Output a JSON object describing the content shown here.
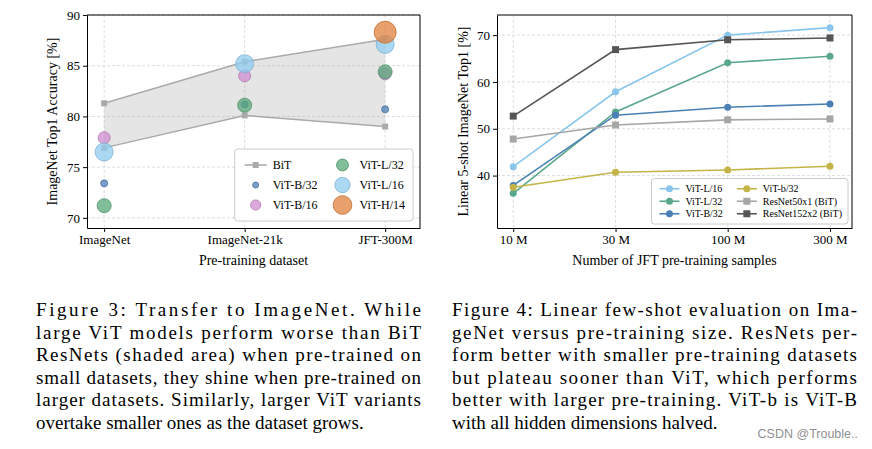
{
  "chart_data": [
    {
      "type": "scatter",
      "x_label": "Pre-training dataset",
      "y_label": "ImageNet Top1 Accuracy [%]",
      "categories": [
        "ImageNet",
        "ImageNet-21k",
        "JFT-300M"
      ],
      "ylim": [
        69,
        90
      ],
      "yticks": [
        70,
        75,
        80,
        85,
        90
      ],
      "grid": true,
      "legend": "lower right",
      "series": [
        {
          "name": "BiT",
          "type": "range_area",
          "color": "#aaaaaa",
          "marker": "square",
          "low": [
            76.9,
            80.1,
            79.0
          ],
          "high": [
            81.3,
            85.4,
            87.6
          ]
        },
        {
          "name": "ViT-B/32",
          "color": "#4a7fb5",
          "marker": "circle",
          "values": [
            73.4,
            81.2,
            80.7
          ]
        },
        {
          "name": "ViT-B/16",
          "color": "#cf8ccf",
          "marker": "circle",
          "values": [
            77.9,
            84.0,
            84.2
          ]
        },
        {
          "name": "ViT-L/32",
          "color": "#58a878",
          "marker": "circle",
          "values": [
            71.2,
            81.1,
            84.4
          ]
        },
        {
          "name": "ViT-L/16",
          "color": "#8fccf0",
          "marker": "circle",
          "values": [
            76.5,
            85.2,
            87.1
          ]
        },
        {
          "name": "ViT-H/14",
          "color": "#e0803c",
          "marker": "circle",
          "values": [
            null,
            null,
            88.3
          ]
        }
      ]
    },
    {
      "type": "line",
      "x_label": "Number of JFT pre-training samples",
      "y_label": "Linear 5-shot ImageNet Top1 [%]",
      "log": "x",
      "x": [
        10000000,
        30000000,
        100000000,
        300000000
      ],
      "xlim": [
        8400000,
        380000000
      ],
      "xticks": [
        {
          "value": 10000000,
          "label": "10 M"
        },
        {
          "value": 30000000,
          "label": "30 M"
        },
        {
          "value": 100000000,
          "label": "100 M"
        },
        {
          "value": 300000000,
          "label": "300 M"
        }
      ],
      "ylim": [
        28.8,
        74.3
      ],
      "yticks": [
        40,
        50,
        60,
        70
      ],
      "grid": true,
      "legend": "lower right",
      "series": [
        {
          "name": "ViT-L/16",
          "color": "#8ac6ec",
          "marker": "circle",
          "values": [
            41.9,
            57.9,
            70.0,
            71.6
          ]
        },
        {
          "name": "ViT-L/32",
          "color": "#5aa88a",
          "marker": "circle",
          "values": [
            36.2,
            53.6,
            64.1,
            65.5
          ]
        },
        {
          "name": "ViT-B/32",
          "color": "#4a80b4",
          "marker": "circle",
          "values": [
            37.9,
            52.9,
            54.6,
            55.3
          ]
        },
        {
          "name": "ViT-b/32",
          "color": "#c4b447",
          "marker": "circle",
          "values": [
            37.5,
            40.7,
            41.2,
            42.0
          ]
        },
        {
          "name": "ResNet50x1 (BiT)",
          "color": "#a6a6a6",
          "marker": "square",
          "values": [
            47.8,
            50.8,
            51.9,
            52.1
          ]
        },
        {
          "name": "ResNet152x2 (BiT)",
          "color": "#555555",
          "marker": "square",
          "values": [
            52.7,
            66.9,
            69.0,
            69.4
          ]
        }
      ]
    }
  ],
  "captions": [
    [
      "Figure 3: Transfer to ImageNet. While",
      "large ViT models perform worse than BiT",
      "ResNets (shaded area) when pre-trained on",
      "small datasets, they shine when pre-trained on",
      "larger datasets. Similarly, larger ViT variants",
      "overtake smaller ones as the dataset grows."
    ],
    [
      "Figure 4: Linear few-shot evaluation on Ima-",
      "geNet versus pre-training size. ResNets per-",
      "form better with smaller pre-training datasets",
      "but plateau sooner than ViT, which performs",
      "better with larger pre-training. ViT-b is ViT-B",
      "with all hidden dimensions halved."
    ]
  ],
  "watermark": "CSDN @Trouble.."
}
